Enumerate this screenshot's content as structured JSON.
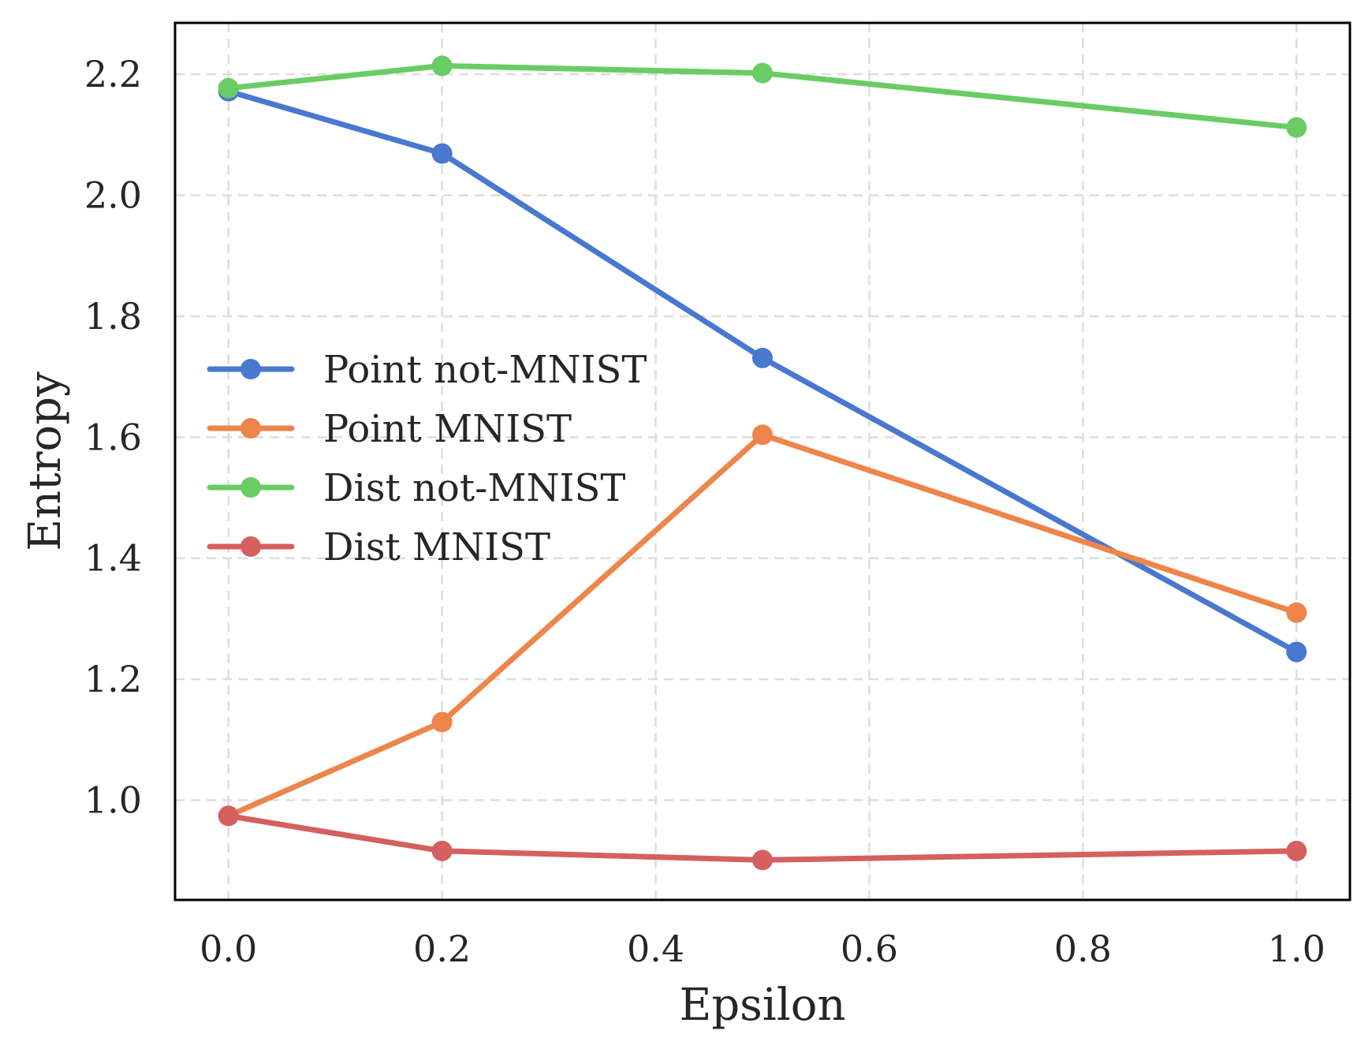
{
  "chart_data": {
    "type": "line",
    "xlabel": "Epsilon",
    "ylabel": "Entropy",
    "xlim": [
      -0.05,
      1.05
    ],
    "ylim": [
      0.835,
      2.285
    ],
    "x_ticks": [
      "0.0",
      "0.2",
      "0.4",
      "0.6",
      "0.8",
      "1.0"
    ],
    "y_ticks": [
      "1.0",
      "1.2",
      "1.4",
      "1.6",
      "1.8",
      "2.0",
      "2.2"
    ],
    "grid": true,
    "legend_position": "center-left",
    "x": [
      0.0,
      0.2,
      0.5,
      1.0
    ],
    "series": [
      {
        "name": "Point not-MNIST",
        "color": "#4878d0",
        "values": [
          2.172,
          2.069,
          1.731,
          1.245
        ]
      },
      {
        "name": "Point MNIST",
        "color": "#ee854a",
        "values": [
          0.974,
          1.129,
          1.604,
          1.31
        ]
      },
      {
        "name": "Dist not-MNIST",
        "color": "#6acc64",
        "values": [
          2.177,
          2.214,
          2.202,
          2.112
        ]
      },
      {
        "name": "Dist MNIST",
        "color": "#d65f5f",
        "values": [
          0.974,
          0.916,
          0.901,
          0.916
        ]
      }
    ]
  }
}
